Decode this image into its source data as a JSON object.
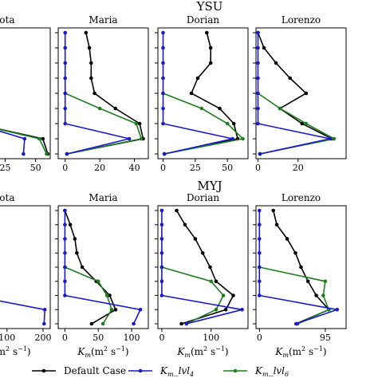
{
  "figure": {
    "legend": {
      "placement": "bottom",
      "entries": [
        {
          "label": "Default Case",
          "color": "#000000"
        },
        {
          "label": "K_m_lvl_4",
          "base": "K",
          "sub": "m",
          "tail": "_lvl",
          "tailsub": "4",
          "color": "#1a1acd"
        },
        {
          "label": "K_m_lvl_6",
          "base": "K",
          "sub": "m",
          "tail": "_lvl",
          "tailsub": "6",
          "color": "#1e7d1e"
        }
      ]
    },
    "xlabel": {
      "base": "K",
      "sub": "m",
      "rest": "(m",
      "sup": "2",
      "rest2": " s",
      "sup2": "−1",
      "close": ")"
    }
  },
  "chart_data": [
    {
      "type": "line",
      "group": "YSU",
      "title": "Iota",
      "xlim": [
        -12,
        62
      ],
      "xticks": [
        25,
        50
      ],
      "xtick_labels": [
        "25",
        "50"
      ],
      "xlabel": "",
      "levels": 9,
      "grid": false,
      "series": [
        {
          "name": "Default Case",
          "color": "#000000",
          "x": [
            null,
            null,
            null,
            null,
            null,
            null,
            0,
            56,
            60
          ]
        },
        {
          "name": "K_m_lvl_4",
          "color": "#1a1acd",
          "x": [
            null,
            null,
            null,
            null,
            null,
            null,
            0,
            41,
            40
          ]
        },
        {
          "name": "K_m_lvl_6",
          "color": "#1e7d1e",
          "x": [
            null,
            null,
            null,
            null,
            null,
            null,
            0,
            53,
            59
          ]
        }
      ]
    },
    {
      "type": "line",
      "group": "YSU",
      "title": "Maria",
      "xlim": [
        -4,
        48
      ],
      "xticks": [
        0,
        20,
        40
      ],
      "xtick_labels": [
        "0",
        "20",
        "40"
      ],
      "xlabel": "",
      "levels": 9,
      "grid": false,
      "series": [
        {
          "name": "Default Case",
          "color": "#000000",
          "x": [
            12,
            14,
            15,
            15,
            17,
            29,
            43,
            45,
            1
          ]
        },
        {
          "name": "K_m_lvl_4",
          "color": "#1a1acd",
          "x": [
            0,
            0,
            0,
            0,
            0,
            0,
            0,
            37,
            1
          ]
        },
        {
          "name": "K_m_lvl_6",
          "color": "#1e7d1e",
          "x": [
            null,
            null,
            null,
            null,
            0,
            20,
            41,
            44,
            1
          ]
        }
      ]
    },
    {
      "type": "line",
      "group": "YSU",
      "title": "Dorian",
      "xlim": [
        -4,
        66
      ],
      "xticks": [
        0,
        25,
        50
      ],
      "xtick_labels": [
        "0",
        "25",
        "50"
      ],
      "xlabel": "",
      "levels": 9,
      "grid": false,
      "series": [
        {
          "name": "Default Case",
          "color": "#000000",
          "x": [
            34,
            37,
            37,
            27,
            22,
            44,
            55,
            58,
            1
          ]
        },
        {
          "name": "K_m_lvl_4",
          "color": "#1a1acd",
          "x": [
            0,
            0,
            0,
            0,
            0,
            0,
            0,
            54,
            1
          ]
        },
        {
          "name": "K_m_lvl_6",
          "color": "#1e7d1e",
          "x": [
            null,
            null,
            null,
            null,
            0,
            30,
            50,
            62,
            1
          ]
        }
      ]
    },
    {
      "type": "line",
      "group": "YSU",
      "title": "Lorenzo",
      "xlim": [
        -1,
        44
      ],
      "xticks": [
        0,
        20
      ],
      "xtick_labels": [
        "0",
        "20"
      ],
      "xlabel": "",
      "levels": 9,
      "grid": false,
      "series": [
        {
          "name": "Default Case",
          "color": "#000000",
          "x": [
            0,
            3,
            9,
            16,
            24,
            11,
            22,
            37,
            1
          ]
        },
        {
          "name": "K_m_lvl_4",
          "color": "#1a1acd",
          "x": [
            0,
            0,
            0,
            0,
            0,
            0,
            0,
            36,
            1
          ]
        },
        {
          "name": "K_m_lvl_6",
          "color": "#1e7d1e",
          "x": [
            null,
            null,
            null,
            null,
            0,
            11,
            24,
            38,
            1
          ]
        }
      ]
    },
    {
      "type": "line",
      "group": "MYJ",
      "title": "Iota",
      "xlim": [
        -30,
        220
      ],
      "xticks": [
        100,
        200
      ],
      "xtick_labels": [
        "100",
        "200"
      ],
      "xlabel": "K_m(m^2 s^-1)",
      "levels": 9,
      "grid": false,
      "series": [
        {
          "name": "Default Case",
          "color": "#000000",
          "x": [
            null,
            null,
            null,
            null,
            null,
            0,
            30,
            60,
            50
          ]
        },
        {
          "name": "K_m_lvl_4",
          "color": "#1a1acd",
          "x": [
            null,
            null,
            null,
            null,
            null,
            null,
            0,
            205,
            203
          ]
        },
        {
          "name": "K_m_lvl_6",
          "color": "#1e7d1e",
          "x": [
            null,
            null,
            null,
            null,
            null,
            0,
            40,
            55,
            50
          ]
        }
      ]
    },
    {
      "type": "line",
      "group": "MYJ",
      "title": "Maria",
      "xlim": [
        -10,
        125
      ],
      "xticks": [
        0,
        50,
        100
      ],
      "xtick_labels": [
        "0",
        "50",
        "100"
      ],
      "xlabel": "K_m(m^2 s^-1)",
      "levels": 9,
      "grid": false,
      "series": [
        {
          "name": "Default Case",
          "color": "#000000",
          "x": [
            0,
            8,
            15,
            18,
            26,
            47,
            67,
            76,
            40
          ]
        },
        {
          "name": "K_m_lvl_4",
          "color": "#1a1acd",
          "x": [
            0,
            0,
            0,
            0,
            0,
            0,
            0,
            113,
            103
          ]
        },
        {
          "name": "K_m_lvl_6",
          "color": "#1e7d1e",
          "x": [
            null,
            null,
            null,
            null,
            0,
            50,
            63,
            70,
            57
          ]
        }
      ]
    },
    {
      "type": "line",
      "group": "MYJ",
      "title": "Dorian",
      "xlim": [
        -8,
        175
      ],
      "xticks": [
        0,
        100
      ],
      "xtick_labels": [
        "0",
        "100"
      ],
      "xlabel": "K_m(m^2 s^-1)",
      "levels": 9,
      "grid": false,
      "series": [
        {
          "name": "Default Case",
          "color": "#000000",
          "x": [
            30,
            47,
            68,
            83,
            98,
            110,
            145,
            130,
            40
          ]
        },
        {
          "name": "K_m_lvl_4",
          "color": "#1a1acd",
          "x": [
            0,
            0,
            0,
            0,
            0,
            0,
            0,
            163,
            50
          ]
        },
        {
          "name": "K_m_lvl_6",
          "color": "#1e7d1e",
          "x": [
            null,
            null,
            null,
            null,
            0,
            100,
            125,
            110,
            50
          ]
        }
      ]
    },
    {
      "type": "line",
      "group": "MYJ",
      "title": "Lorenzo",
      "xlim": [
        -5,
        125
      ],
      "xticks": [
        0,
        95
      ],
      "xtick_labels": [
        "0",
        "95"
      ],
      "xlabel": "K_m(m^2 s^-1)",
      "levels": 9,
      "grid": false,
      "series": [
        {
          "name": "Default Case",
          "color": "#000000",
          "x": [
            20,
            25,
            40,
            52,
            60,
            70,
            82,
            100,
            53
          ]
        },
        {
          "name": "K_m_lvl_4",
          "color": "#1a1acd",
          "x": [
            0,
            0,
            0,
            0,
            0,
            0,
            0,
            112,
            53
          ]
        },
        {
          "name": "K_m_lvl_6",
          "color": "#1e7d1e",
          "x": [
            null,
            null,
            null,
            null,
            0,
            95,
            92,
            100,
            55
          ]
        }
      ]
    }
  ]
}
